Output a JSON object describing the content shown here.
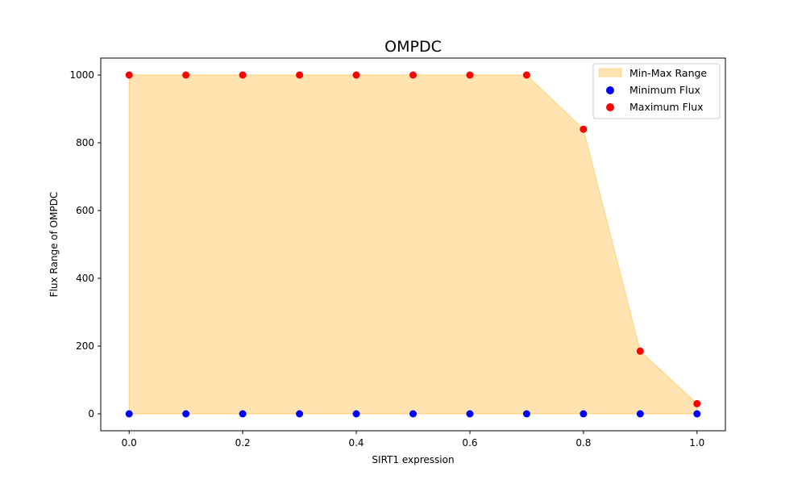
{
  "chart_data": {
    "type": "scatter",
    "title": "OMPDC",
    "xlabel": "SIRT1 expression",
    "ylabel": "Flux Range of OMPDC",
    "x": [
      0.0,
      0.1,
      0.2,
      0.3,
      0.4,
      0.5,
      0.6,
      0.7,
      0.8,
      0.9,
      1.0
    ],
    "series": [
      {
        "name": "Minimum Flux",
        "values": [
          0,
          0,
          0,
          0,
          0,
          0,
          0,
          0,
          0,
          0,
          0
        ],
        "color": "#0000ff"
      },
      {
        "name": "Maximum Flux",
        "values": [
          1000,
          1000,
          1000,
          1000,
          1000,
          1000,
          1000,
          1000,
          840,
          185,
          30
        ],
        "color": "#ff0000"
      }
    ],
    "range_fill": {
      "name": "Min-Max Range",
      "color": "#ffa500",
      "opacity": 0.3
    },
    "xlim": [
      -0.05,
      1.05
    ],
    "ylim": [
      -50,
      1050
    ],
    "xticks": [
      0.0,
      0.2,
      0.4,
      0.6,
      0.8,
      1.0
    ],
    "xtick_labels": [
      "0.0",
      "0.2",
      "0.4",
      "0.6",
      "0.8",
      "1.0"
    ],
    "yticks": [
      0,
      200,
      400,
      600,
      800,
      1000
    ],
    "ytick_labels": [
      "0",
      "200",
      "400",
      "600",
      "800",
      "1000"
    ],
    "grid": false,
    "legend_position": "top-right"
  }
}
